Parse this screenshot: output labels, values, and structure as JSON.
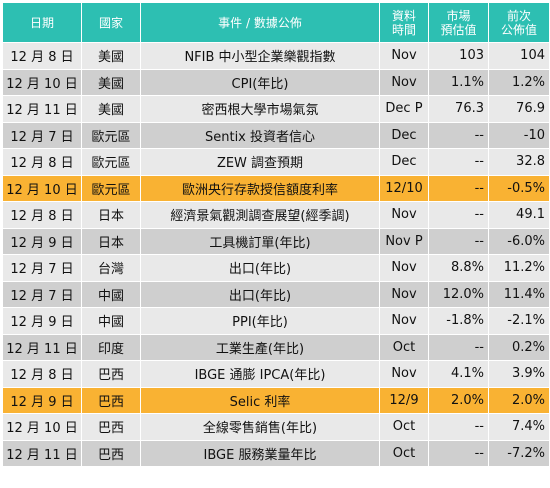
{
  "headers": {
    "date": "日期",
    "country": "國家",
    "event": "事件 / 數據公佈",
    "time_l1": "資料",
    "time_l2": "時間",
    "forecast_l1": "市場",
    "forecast_l2": "預估值",
    "previous_l1": "前次",
    "previous_l2": "公佈值"
  },
  "rows": [
    {
      "date": "12 月 8 日",
      "country": "美國",
      "event": "NFIB 中小型企業樂觀指數",
      "time": "Nov",
      "forecast": "103",
      "previous": "104",
      "highlight": false
    },
    {
      "date": "12 月 10 日",
      "country": "美國",
      "event": "CPI(年比)",
      "time": "Nov",
      "forecast": "1.1%",
      "previous": "1.2%",
      "highlight": false
    },
    {
      "date": "12 月 11 日",
      "country": "美國",
      "event": "密西根大學市場氣氛",
      "time": "Dec P",
      "forecast": "76.3",
      "previous": "76.9",
      "highlight": false
    },
    {
      "date": "12 月 7 日",
      "country": "歐元區",
      "event": "Sentix 投資者信心",
      "time": "Dec",
      "forecast": "--",
      "previous": "-10",
      "highlight": false
    },
    {
      "date": "12 月 8 日",
      "country": "歐元區",
      "event": "ZEW 調查預期",
      "time": "Dec",
      "forecast": "--",
      "previous": "32.8",
      "highlight": false
    },
    {
      "date": "12 月 10 日",
      "country": "歐元區",
      "event": "歐洲央行存款授信額度利率",
      "time": "12/10",
      "forecast": "--",
      "previous": "-0.5%",
      "highlight": true
    },
    {
      "date": "12 月 8 日",
      "country": "日本",
      "event": "經濟景氣觀測調查展望(經季調)",
      "time": "Nov",
      "forecast": "--",
      "previous": "49.1",
      "highlight": false
    },
    {
      "date": "12 月 9 日",
      "country": "日本",
      "event": "工具機訂單(年比)",
      "time": "Nov P",
      "forecast": "--",
      "previous": "-6.0%",
      "highlight": false
    },
    {
      "date": "12 月 7 日",
      "country": "台灣",
      "event": "出口(年比)",
      "time": "Nov",
      "forecast": "8.8%",
      "previous": "11.2%",
      "highlight": false
    },
    {
      "date": "12 月 7 日",
      "country": "中國",
      "event": "出口(年比)",
      "time": "Nov",
      "forecast": "12.0%",
      "previous": "11.4%",
      "highlight": false
    },
    {
      "date": "12 月 9 日",
      "country": "中國",
      "event": "PPI(年比)",
      "time": "Nov",
      "forecast": "-1.8%",
      "previous": "-2.1%",
      "highlight": false
    },
    {
      "date": "12 月 11 日",
      "country": "印度",
      "event": "工業生產(年比)",
      "time": "Oct",
      "forecast": "--",
      "previous": "0.2%",
      "highlight": false
    },
    {
      "date": "12 月 8 日",
      "country": "巴西",
      "event": "IBGE 通膨 IPCA(年比)",
      "time": "Nov",
      "forecast": "4.1%",
      "previous": "3.9%",
      "highlight": false
    },
    {
      "date": "12 月 9 日",
      "country": "巴西",
      "event": "Selic 利率",
      "time": "12/9",
      "forecast": "2.0%",
      "previous": "2.0%",
      "highlight": true
    },
    {
      "date": "12 月 10 日",
      "country": "巴西",
      "event": "全線零售銷售(年比)",
      "time": "Oct",
      "forecast": "--",
      "previous": "7.4%",
      "highlight": false
    },
    {
      "date": "12 月 11 日",
      "country": "巴西",
      "event": "IBGE 服務業量年比",
      "time": "Oct",
      "forecast": "--",
      "previous": "-7.2%",
      "highlight": false
    }
  ]
}
